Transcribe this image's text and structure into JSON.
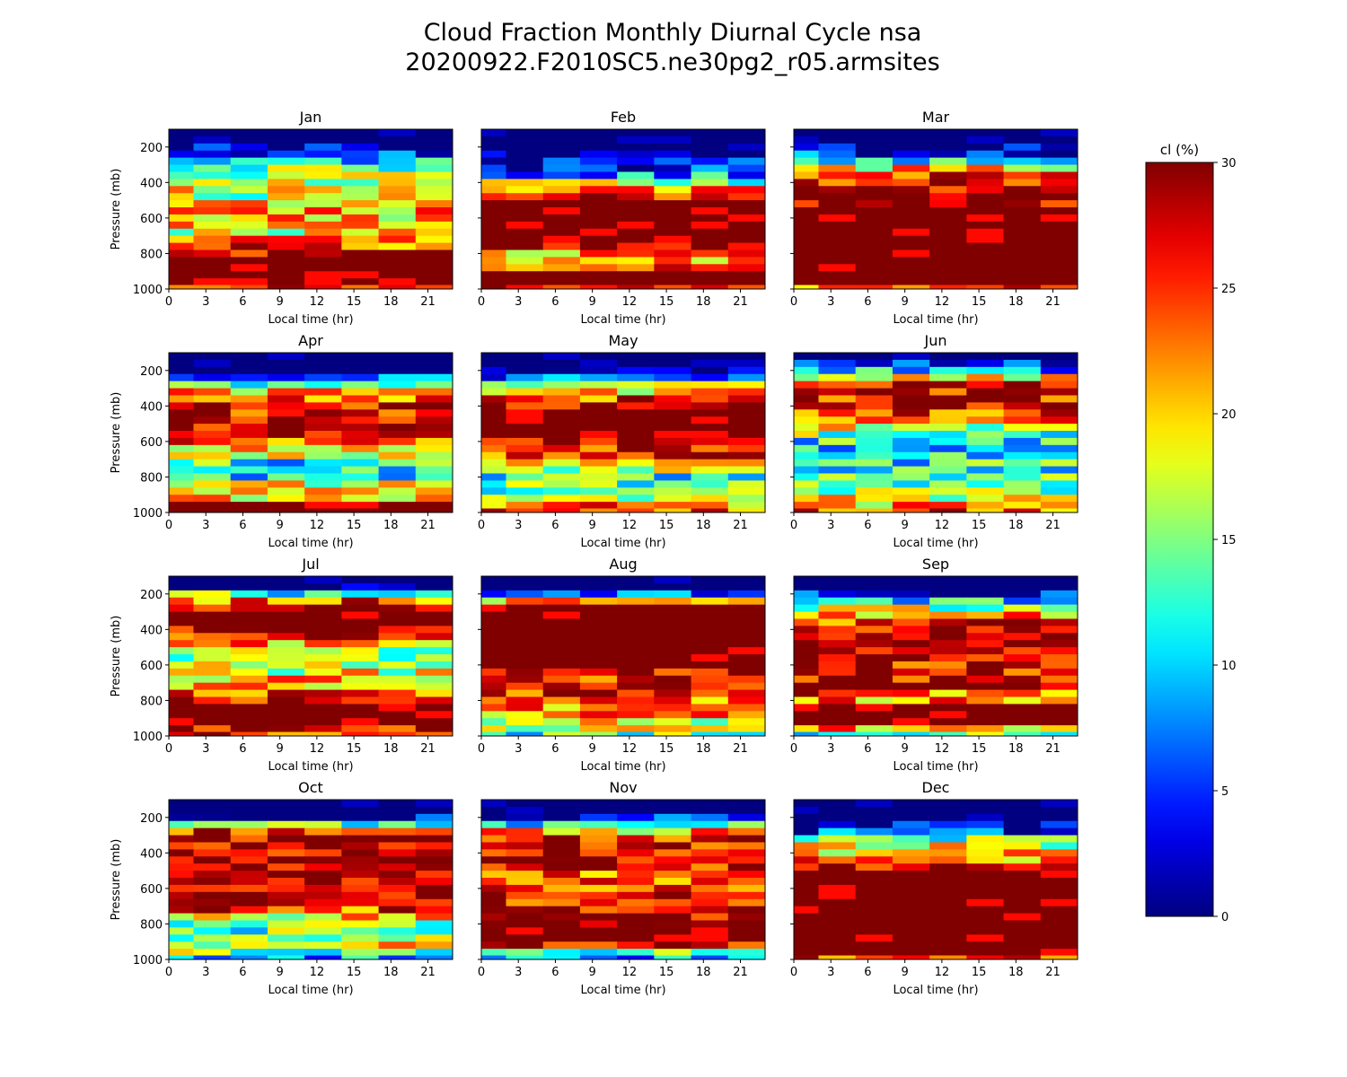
{
  "chart_data": {
    "type": "heatmap",
    "title_lines": [
      "Cloud Fraction Monthly Diurnal Cycle nsa",
      "20200922.F2010SC5.ne30pg2_r05.armsites"
    ],
    "xlabel": "Local time (hr)",
    "ylabel": "Pressure (mb)",
    "xlim": [
      0,
      23
    ],
    "ylim": [
      1000,
      100
    ],
    "x_ticks": [
      "0",
      "3",
      "6",
      "9",
      "12",
      "15",
      "18",
      "21"
    ],
    "y_ticks": [
      "200",
      "400",
      "600",
      "800",
      "1000"
    ],
    "x_hours": [
      0,
      3,
      6,
      9,
      12,
      15,
      18,
      21
    ],
    "y_pressure": [
      200,
      400,
      600,
      800,
      1000
    ],
    "colorbar": {
      "label": "cl (%)",
      "min": 0,
      "max": 30,
      "ticks": [
        "0",
        "5",
        "10",
        "15",
        "20",
        "25",
        "30"
      ],
      "colormap": "jet"
    },
    "time_bins_hr": [
      0.75,
      3.75,
      6.75,
      9.75,
      12.75,
      15.75,
      18.75,
      21.75
    ],
    "pressure_levels_mb": [
      120,
      160,
      200,
      240,
      280,
      320,
      360,
      400,
      440,
      480,
      520,
      560,
      600,
      640,
      680,
      720,
      760,
      800,
      840,
      880,
      920,
      960,
      995
    ],
    "panels": [
      {
        "month": "Jan",
        "profile": [
          0,
          0,
          2,
          6,
          10,
          14,
          16,
          18,
          19,
          17,
          19,
          21,
          20,
          19,
          18,
          21,
          24,
          29,
          30,
          30,
          30,
          30,
          28
        ]
      },
      {
        "month": "Feb",
        "profile": [
          0,
          0,
          0,
          1,
          2,
          4,
          9,
          15,
          22,
          27,
          30,
          30,
          30,
          30,
          30,
          30,
          29,
          21,
          22,
          26,
          30,
          30,
          29
        ]
      },
      {
        "month": "Mar",
        "profile": [
          0,
          0,
          1,
          5,
          12,
          20,
          24,
          26,
          29,
          30,
          29,
          30,
          30,
          30,
          30,
          30,
          30,
          30,
          30,
          30,
          30,
          30,
          23
        ]
      },
      {
        "month": "Apr",
        "profile": [
          0,
          0,
          0,
          5,
          14,
          20,
          24,
          26,
          27,
          28,
          29,
          27,
          24,
          21,
          16,
          12,
          10,
          12,
          18,
          19,
          21,
          30,
          30
        ]
      },
      {
        "month": "May",
        "profile": [
          0,
          0,
          1,
          6,
          14,
          21,
          25,
          28,
          30,
          30,
          30,
          30,
          29,
          27,
          24,
          21,
          17,
          12,
          14,
          15,
          17,
          22,
          24
        ]
      },
      {
        "month": "Jun",
        "profile": [
          0,
          3,
          9,
          18,
          26,
          28,
          27,
          26,
          25,
          22,
          18,
          14,
          12,
          11,
          11,
          12,
          13,
          12,
          14,
          16,
          18,
          21,
          24
        ]
      },
      {
        "month": "Jul",
        "profile": [
          0,
          3,
          13,
          24,
          29,
          30,
          30,
          29,
          26,
          21,
          17,
          15,
          17,
          18,
          20,
          22,
          24,
          28,
          30,
          30,
          30,
          28,
          25
        ]
      },
      {
        "month": "Aug",
        "profile": [
          0,
          0,
          6,
          20,
          30,
          30,
          30,
          30,
          30,
          30,
          30,
          30,
          30,
          28,
          27,
          27,
          26,
          24,
          22,
          21,
          19,
          17,
          13
        ]
      },
      {
        "month": "Sep",
        "profile": [
          0,
          0,
          3,
          10,
          16,
          21,
          25,
          27,
          28,
          29,
          29,
          28,
          27,
          27,
          28,
          30,
          24,
          22,
          30,
          30,
          30,
          22,
          14
        ]
      },
      {
        "month": "Oct",
        "profile": [
          0,
          0,
          3,
          14,
          25,
          28,
          29,
          29,
          29,
          29,
          29,
          29,
          29,
          29,
          28,
          25,
          19,
          14,
          14,
          16,
          18,
          15,
          8
        ]
      },
      {
        "month": "Nov",
        "profile": [
          0,
          0,
          3,
          12,
          21,
          26,
          27,
          28,
          27,
          26,
          25,
          24,
          25,
          26,
          27,
          28,
          28,
          29,
          30,
          30,
          28,
          15,
          8
        ]
      },
      {
        "month": "Dec",
        "profile": [
          0,
          0,
          0,
          2,
          5,
          14,
          18,
          20,
          23,
          28,
          30,
          30,
          30,
          30,
          30,
          30,
          30,
          30,
          30,
          30,
          30,
          30,
          26
        ]
      }
    ]
  }
}
